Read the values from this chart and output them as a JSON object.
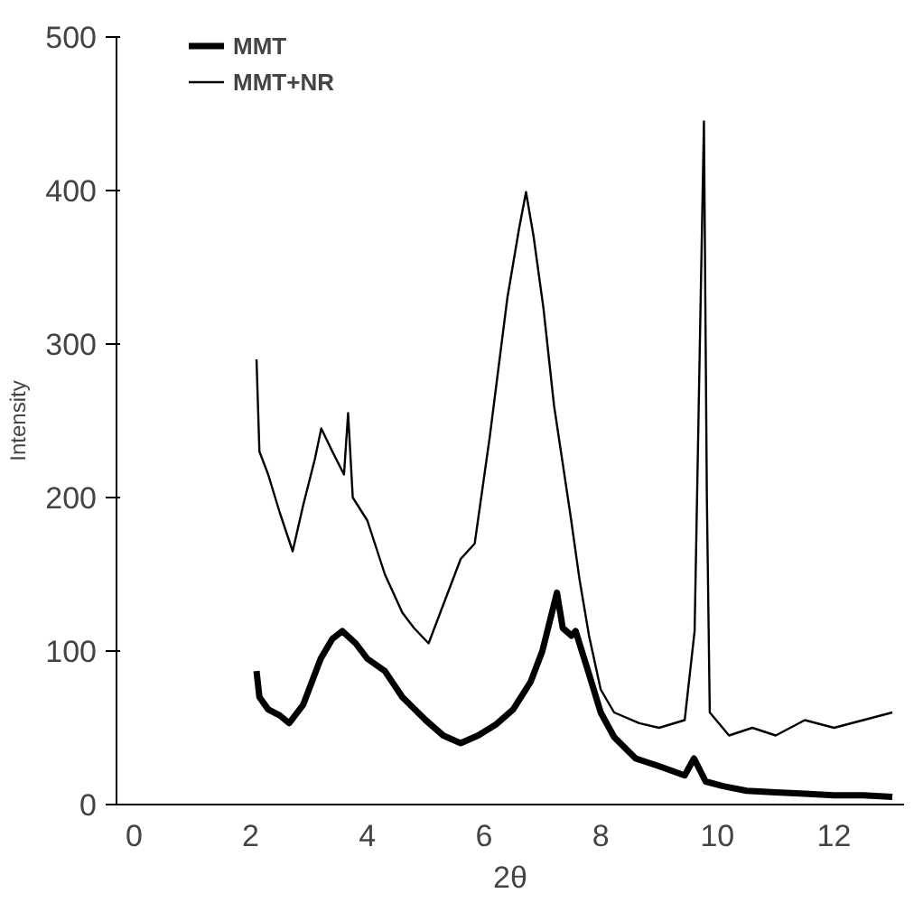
{
  "chart_data": {
    "type": "line",
    "xlabel": "2θ",
    "ylabel": "Intensity",
    "xlim": [
      -0.3,
      13.2
    ],
    "ylim": [
      0,
      500
    ],
    "xticks": [
      0,
      2,
      4,
      6,
      8,
      10,
      12
    ],
    "yticks": [
      0,
      100,
      200,
      300,
      400,
      500
    ],
    "grid": false,
    "legend": "top left",
    "marker": "none",
    "line_style": "solid",
    "series": [
      {
        "name": "MMT",
        "color": "#000000",
        "x": [
          2.1,
          2.15,
          2.3,
          2.5,
          2.66,
          2.9,
          3.2,
          3.4,
          3.57,
          3.8,
          4.0,
          4.3,
          4.6,
          5.0,
          5.3,
          5.6,
          5.9,
          6.2,
          6.5,
          6.8,
          7.0,
          7.25,
          7.35,
          7.5,
          7.57,
          7.8,
          8.0,
          8.23,
          8.6,
          9.0,
          9.44,
          9.6,
          9.8,
          10.1,
          10.5,
          11.0,
          11.5,
          12.0,
          12.5,
          13.0
        ],
        "values": [
          87,
          70,
          62,
          58,
          53,
          65,
          95,
          108,
          113,
          105,
          95,
          87,
          70,
          55,
          45,
          40,
          45,
          52,
          62,
          80,
          100,
          138,
          115,
          110,
          113,
          85,
          60,
          44,
          30,
          25,
          19,
          30,
          15,
          12,
          9,
          8,
          7,
          6,
          6,
          5
        ]
      },
      {
        "name": "MMT+NR",
        "color": "#000000",
        "x": [
          2.1,
          2.15,
          2.3,
          2.5,
          2.72,
          2.9,
          3.1,
          3.21,
          3.4,
          3.6,
          3.67,
          3.75,
          4.0,
          4.3,
          4.6,
          4.8,
          5.05,
          5.3,
          5.6,
          5.84,
          6.1,
          6.4,
          6.6,
          6.72,
          6.85,
          7.02,
          7.2,
          7.48,
          7.64,
          7.8,
          8.0,
          8.23,
          8.66,
          9.0,
          9.44,
          9.61,
          9.7,
          9.77,
          9.82,
          9.87,
          10.2,
          10.6,
          11.0,
          11.5,
          12.0,
          12.5,
          13.0
        ],
        "values": [
          290,
          230,
          215,
          190,
          165,
          195,
          225,
          245,
          230,
          215,
          255,
          200,
          185,
          150,
          125,
          115,
          105,
          130,
          160,
          170,
          240,
          330,
          375,
          399,
          370,
          323,
          260,
          189,
          146,
          110,
          75,
          60,
          53,
          50,
          55,
          113,
          300,
          445,
          200,
          60,
          45,
          50,
          45,
          55,
          50,
          55,
          60
        ]
      }
    ]
  }
}
